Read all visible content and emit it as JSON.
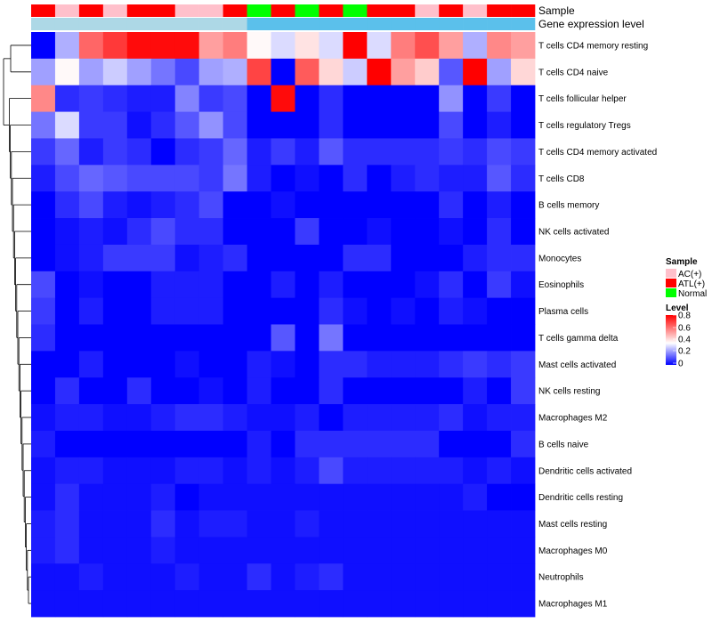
{
  "chart_data": {
    "type": "heatmap",
    "title": "",
    "annotation_rows": [
      "Sample",
      "Gene expression level"
    ],
    "sample_groups": [
      "ATL(+)",
      "AC(+)",
      "ATL(+)",
      "AC(+)",
      "ATL(+)",
      "ATL(+)",
      "AC(+)",
      "AC(+)",
      "ATL(+)",
      "Normal",
      "ATL(+)",
      "Normal",
      "ATL(+)",
      "Normal",
      "ATL(+)",
      "ATL(+)",
      "AC(+)",
      "ATL(+)",
      "AC(+)",
      "ATL(+)",
      "ATL(+)"
    ],
    "expression_groups": [
      "Low",
      "Low",
      "Low",
      "Low",
      "Low",
      "Low",
      "Low",
      "Low",
      "Low",
      "High",
      "High",
      "High",
      "High",
      "High",
      "High",
      "High",
      "High",
      "High",
      "High",
      "High",
      "High"
    ],
    "rows": [
      "T cells CD4 memory resting",
      "T cells CD4 naive",
      "T cells follicular helper",
      "T cells regulatory  Tregs",
      "T cells CD4 memory activated",
      "T cells CD8",
      "B cells memory",
      "NK cells activated",
      "Monocytes",
      "Eosinophils",
      "Plasma cells",
      "T cells gamma delta",
      "Mast cells activated",
      "NK cells resting",
      "Macrophages M2",
      "B cells naive",
      "Dendritic cells activated",
      "Dendritic cells resting",
      "Mast cells resting",
      "Macrophages M0",
      "Neutrophils",
      "Macrophages M1"
    ],
    "values": [
      [
        0.0,
        0.24,
        0.62,
        0.7,
        0.78,
        0.78,
        0.78,
        0.52,
        0.58,
        0.36,
        0.3,
        0.4,
        0.3,
        0.8,
        0.3,
        0.58,
        0.66,
        0.52,
        0.24,
        0.56,
        0.52
      ],
      [
        0.22,
        0.36,
        0.22,
        0.28,
        0.22,
        0.16,
        0.1,
        0.22,
        0.24,
        0.68,
        0.0,
        0.64,
        0.42,
        0.28,
        0.8,
        0.52,
        0.44,
        0.12,
        0.8,
        0.22,
        0.42
      ],
      [
        0.56,
        0.06,
        0.08,
        0.06,
        0.04,
        0.04,
        0.18,
        0.08,
        0.1,
        0.0,
        0.78,
        0.0,
        0.06,
        0.0,
        0.0,
        0.0,
        0.0,
        0.2,
        0.0,
        0.08,
        0.0
      ],
      [
        0.16,
        0.3,
        0.08,
        0.08,
        0.02,
        0.06,
        0.12,
        0.2,
        0.1,
        0.0,
        0.0,
        0.0,
        0.06,
        0.0,
        0.0,
        0.0,
        0.0,
        0.1,
        0.0,
        0.04,
        0.0
      ],
      [
        0.08,
        0.14,
        0.04,
        0.08,
        0.06,
        0.0,
        0.06,
        0.08,
        0.14,
        0.04,
        0.08,
        0.04,
        0.12,
        0.06,
        0.06,
        0.06,
        0.06,
        0.08,
        0.06,
        0.1,
        0.08
      ],
      [
        0.04,
        0.1,
        0.14,
        0.12,
        0.1,
        0.1,
        0.1,
        0.08,
        0.16,
        0.04,
        0.0,
        0.02,
        0.0,
        0.06,
        0.0,
        0.04,
        0.06,
        0.04,
        0.04,
        0.12,
        0.06
      ],
      [
        0.0,
        0.06,
        0.1,
        0.04,
        0.02,
        0.04,
        0.06,
        0.1,
        0.0,
        0.0,
        0.02,
        0.0,
        0.0,
        0.0,
        0.0,
        0.0,
        0.0,
        0.06,
        0.0,
        0.04,
        0.0
      ],
      [
        0.0,
        0.02,
        0.04,
        0.02,
        0.06,
        0.1,
        0.06,
        0.06,
        0.0,
        0.0,
        0.0,
        0.08,
        0.0,
        0.0,
        0.02,
        0.0,
        0.0,
        0.02,
        0.0,
        0.06,
        0.0
      ],
      [
        0.0,
        0.02,
        0.04,
        0.08,
        0.08,
        0.08,
        0.02,
        0.04,
        0.06,
        0.0,
        0.0,
        0.0,
        0.0,
        0.06,
        0.06,
        0.0,
        0.0,
        0.0,
        0.04,
        0.06,
        0.06
      ],
      [
        0.1,
        0.0,
        0.02,
        0.0,
        0.0,
        0.04,
        0.04,
        0.04,
        0.0,
        0.0,
        0.04,
        0.0,
        0.04,
        0.0,
        0.0,
        0.0,
        0.02,
        0.06,
        0.0,
        0.08,
        0.02
      ],
      [
        0.08,
        0.0,
        0.04,
        0.0,
        0.0,
        0.04,
        0.04,
        0.04,
        0.0,
        0.0,
        0.0,
        0.0,
        0.06,
        0.02,
        0.0,
        0.02,
        0.0,
        0.04,
        0.02,
        0.0,
        0.0
      ],
      [
        0.06,
        0.0,
        0.0,
        0.0,
        0.0,
        0.0,
        0.0,
        0.0,
        0.0,
        0.0,
        0.12,
        0.0,
        0.16,
        0.0,
        0.0,
        0.0,
        0.0,
        0.0,
        0.0,
        0.0,
        0.0
      ],
      [
        0.0,
        0.0,
        0.04,
        0.0,
        0.0,
        0.0,
        0.02,
        0.0,
        0.0,
        0.04,
        0.02,
        0.0,
        0.06,
        0.06,
        0.04,
        0.04,
        0.04,
        0.06,
        0.08,
        0.06,
        0.08
      ],
      [
        0.0,
        0.06,
        0.0,
        0.0,
        0.06,
        0.0,
        0.0,
        0.02,
        0.0,
        0.04,
        0.0,
        0.0,
        0.06,
        0.0,
        0.0,
        0.0,
        0.0,
        0.0,
        0.04,
        0.0,
        0.08
      ],
      [
        0.02,
        0.04,
        0.04,
        0.02,
        0.02,
        0.04,
        0.06,
        0.06,
        0.04,
        0.02,
        0.02,
        0.04,
        0.0,
        0.04,
        0.04,
        0.04,
        0.04,
        0.06,
        0.02,
        0.04,
        0.04
      ],
      [
        0.04,
        0.0,
        0.0,
        0.0,
        0.0,
        0.0,
        0.0,
        0.0,
        0.0,
        0.04,
        0.0,
        0.06,
        0.06,
        0.06,
        0.06,
        0.06,
        0.06,
        0.0,
        0.0,
        0.0,
        0.06
      ],
      [
        0.02,
        0.04,
        0.04,
        0.02,
        0.02,
        0.02,
        0.04,
        0.04,
        0.02,
        0.04,
        0.02,
        0.04,
        0.1,
        0.04,
        0.04,
        0.04,
        0.04,
        0.04,
        0.02,
        0.04,
        0.02
      ],
      [
        0.02,
        0.06,
        0.02,
        0.02,
        0.02,
        0.04,
        0.0,
        0.02,
        0.02,
        0.02,
        0.02,
        0.02,
        0.02,
        0.02,
        0.02,
        0.02,
        0.02,
        0.02,
        0.04,
        0.0,
        0.0
      ],
      [
        0.04,
        0.06,
        0.02,
        0.02,
        0.02,
        0.06,
        0.02,
        0.04,
        0.04,
        0.02,
        0.02,
        0.04,
        0.02,
        0.02,
        0.02,
        0.02,
        0.02,
        0.02,
        0.02,
        0.02,
        0.02
      ],
      [
        0.04,
        0.06,
        0.02,
        0.02,
        0.02,
        0.04,
        0.02,
        0.02,
        0.02,
        0.02,
        0.02,
        0.02,
        0.02,
        0.02,
        0.02,
        0.02,
        0.02,
        0.02,
        0.02,
        0.02,
        0.02
      ],
      [
        0.02,
        0.02,
        0.04,
        0.02,
        0.02,
        0.02,
        0.04,
        0.02,
        0.02,
        0.06,
        0.02,
        0.04,
        0.06,
        0.02,
        0.02,
        0.02,
        0.02,
        0.02,
        0.02,
        0.02,
        0.02
      ],
      [
        0.02,
        0.02,
        0.02,
        0.02,
        0.02,
        0.02,
        0.02,
        0.02,
        0.02,
        0.02,
        0.02,
        0.02,
        0.02,
        0.02,
        0.02,
        0.02,
        0.02,
        0.02,
        0.02,
        0.02,
        0.02
      ]
    ],
    "color_scale": {
      "min": 0,
      "max": 0.8,
      "low": "#0000FF",
      "mid": "#FFFFFF",
      "high": "#FF0000",
      "mid_value": 0.35
    },
    "legends": {
      "sample": {
        "title": "Sample",
        "items": [
          {
            "label": "AC(+)",
            "color": "#FFC0CB"
          },
          {
            "label": "ATL(+)",
            "color": "#FF0000"
          },
          {
            "label": "Normal",
            "color": "#00FF00"
          }
        ]
      },
      "level": {
        "title": "Level",
        "ticks": [
          "0.8",
          "0.6",
          "0.4",
          "0.2",
          "0"
        ]
      }
    },
    "expression_colors": {
      "Low": "#ADD8E6",
      "High": "#5BC0EB"
    },
    "dendrogram": "row clustering tree on left side"
  }
}
